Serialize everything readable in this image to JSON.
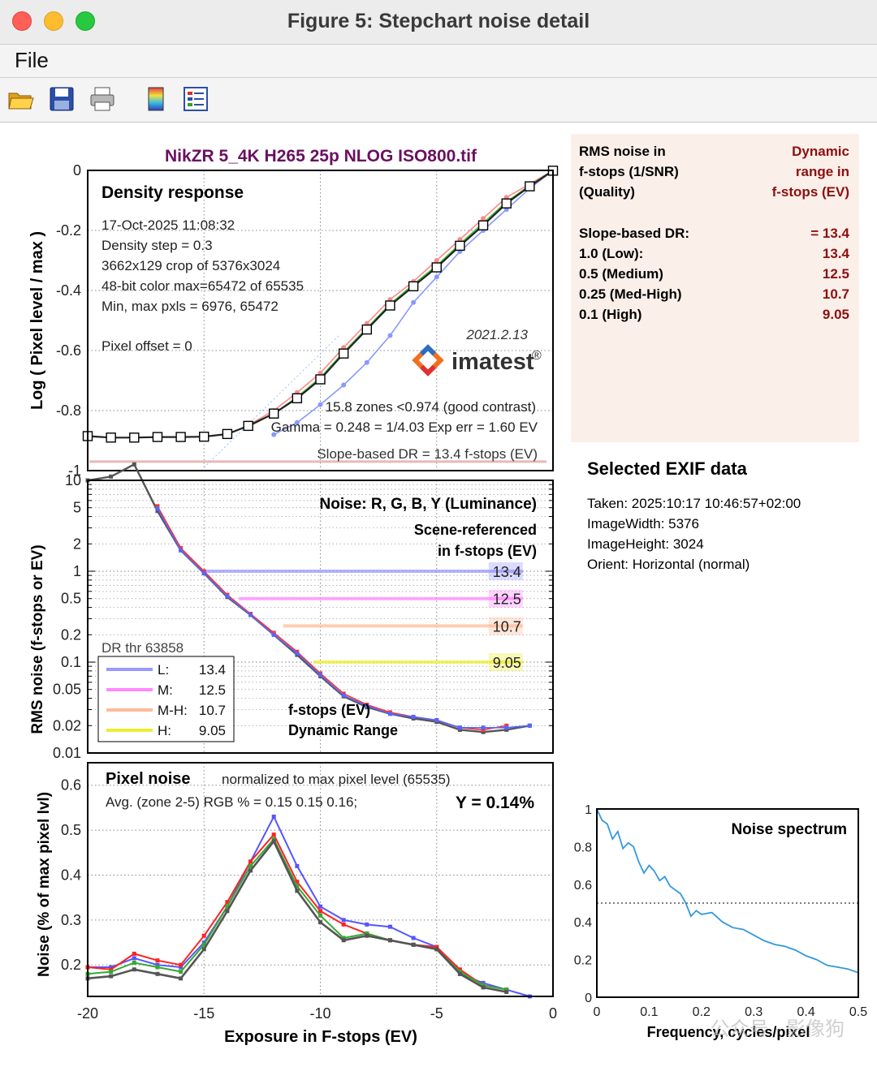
{
  "window": {
    "title": "Figure 5: Stepchart noise detail"
  },
  "menu": {
    "file": "File"
  },
  "toolbar": {
    "buttons": [
      {
        "name": "open-file-icon"
      },
      {
        "name": "save-icon"
      },
      {
        "name": "print-icon"
      },
      {
        "name": "colorbar-icon"
      },
      {
        "name": "legend-icon"
      }
    ]
  },
  "figure": {
    "title": "NikZR 5_4K H265 25p NLOG ISO800.tif",
    "x_ticks": [
      "-20",
      "-15",
      "-10",
      "-5",
      "0"
    ],
    "xlabel": "Exposure in F-stops (EV)"
  },
  "density": {
    "title": "Density response",
    "info_lines": [
      "17-Oct-2025 11:08:32",
      "Density step = 0.3",
      "3662x129 crop of 5376x3024",
      "48-bit color  max=65472 of 65535",
      "Min, max pxls = 6976, 65472"
    ],
    "pixel_offset": "Pixel offset = 0",
    "version": "2021.2.13",
    "logo": "imatest",
    "logo_reg": "®",
    "zones": "15.8 zones <0.974 (good contrast)",
    "gamma": "Gamma = 0.248 = 1/4.03  Exp err = 1.60 EV",
    "slope_dr": "Slope-based DR = 13.4 f-stops (EV)",
    "ylabel": "Log ( Pixel level / max )",
    "y_ticks": [
      "0",
      "-0.2",
      "-0.4",
      "-0.6",
      "-0.8",
      "-1"
    ]
  },
  "noise_panel": {
    "title": "Noise: R, G, B, Y (Luminance)",
    "subtitle1": "Scene-referenced",
    "subtitle2": "in f-stops (EV)",
    "ylabel": "RMS noise (f-stops or EV)",
    "y_ticks": [
      "10",
      "5",
      "2",
      "1",
      "0.5",
      "0.2",
      "0.1",
      "0.05",
      "0.02",
      "0.01"
    ],
    "dr_thr": "DR thr 63858",
    "legend": [
      {
        "label": "L:",
        "value": "13.4",
        "color": "#9999ff"
      },
      {
        "label": "M:",
        "value": "12.5",
        "color": "#ff88ff"
      },
      {
        "label": "M-H:",
        "value": "10.7",
        "color": "#ffbb99"
      },
      {
        "label": "H:",
        "value": "9.05",
        "color": "#eeee33"
      }
    ],
    "dr_labels": [
      "13.4",
      "12.5",
      "10.7",
      "9.05"
    ],
    "bottom_label1": "f-stops (EV)",
    "bottom_label2": "Dynamic Range"
  },
  "pixel_noise": {
    "title": "Pixel noise",
    "normalized": "normalized to max pixel level (65535)",
    "avg": "Avg. (zone 2-5) RGB % = 0.15  0.15  0.16;",
    "y_value": "Y = 0.14%",
    "ylabel": "Noise (% of max pixel lvl)",
    "y_ticks": [
      "0.6",
      "0.5",
      "0.4",
      "0.3",
      "0.2"
    ]
  },
  "rms_box": {
    "left_lines": [
      "RMS noise in",
      "f-stops (1/SNR)",
      "(Quality)"
    ],
    "right_lines": [
      "Dynamic",
      "range in",
      "f-stops (EV)"
    ],
    "rows": [
      {
        "label": "Slope-based DR:",
        "value": "= 13.4"
      },
      {
        "label": "1.0   (Low):",
        "value": "13.4"
      },
      {
        "label": "0.5   (Medium)",
        "value": "12.5"
      },
      {
        "label": "0.25 (Med-High)",
        "value": "10.7"
      },
      {
        "label": "0.1   (High)",
        "value": "9.05"
      }
    ]
  },
  "exif": {
    "title": "Selected EXIF data",
    "lines": [
      "Taken: 2025:10:17  10:46:57+02:00",
      "ImageWidth:  5376",
      "ImageHeight:  3024",
      "Orient: Horizontal (normal)"
    ]
  },
  "spectrum": {
    "title": "Noise spectrum",
    "xlabel": "Frequency, cycles/pixel",
    "x_ticks": [
      "0",
      "0.1",
      "0.2",
      "0.3",
      "0.4",
      "0.5"
    ],
    "y_ticks": [
      "0",
      "0.2",
      "0.4",
      "0.6",
      "0.8",
      "1"
    ]
  },
  "watermark": "公众号 · 影像狗",
  "chart_data": [
    {
      "type": "line",
      "title": "Density response",
      "ylabel": "Log ( Pixel level / max )",
      "xlim": [
        -20,
        0
      ],
      "ylim": [
        -1,
        0
      ],
      "series": [
        {
          "color": "#222222",
          "x": [
            -20,
            -19,
            -18,
            -17,
            -16,
            -15,
            -14,
            -13.1,
            -12,
            -11,
            -10,
            -9,
            -8,
            -7,
            -6,
            -5,
            -4,
            -3,
            -2,
            -1,
            0
          ],
          "y": [
            -0.885,
            -0.89,
            -0.89,
            -0.888,
            -0.888,
            -0.887,
            -0.878,
            -0.851,
            -0.81,
            -0.759,
            -0.696,
            -0.61,
            -0.53,
            -0.45,
            -0.386,
            -0.323,
            -0.251,
            -0.183,
            -0.11,
            -0.053,
            -0.001
          ]
        },
        {
          "color": "#ff8888",
          "x": [
            -13,
            -12,
            -11,
            -10,
            -9,
            -8,
            -7,
            -6,
            -5,
            -4,
            -3,
            -2,
            -1,
            0
          ],
          "y": [
            -0.845,
            -0.8,
            -0.74,
            -0.675,
            -0.59,
            -0.51,
            -0.43,
            -0.37,
            -0.3,
            -0.23,
            -0.16,
            -0.09,
            -0.045,
            0
          ]
        },
        {
          "color": "#44bb44",
          "x": [
            -13,
            -12,
            -11,
            -10,
            -9,
            -8,
            -7,
            -6,
            -5,
            -4,
            -3,
            -2,
            -1,
            0
          ],
          "y": [
            -0.85,
            -0.81,
            -0.755,
            -0.69,
            -0.605,
            -0.525,
            -0.445,
            -0.38,
            -0.317,
            -0.245,
            -0.175,
            -0.105,
            -0.05,
            0
          ]
        },
        {
          "color": "#8899ff",
          "x": [
            -12,
            -11,
            -10,
            -9,
            -8,
            -7,
            -6,
            -5,
            -4,
            -3,
            -2,
            -1,
            0
          ],
          "y": [
            -0.88,
            -0.84,
            -0.78,
            -0.715,
            -0.64,
            -0.55,
            -0.44,
            -0.355,
            -0.27,
            -0.2,
            -0.13,
            -0.06,
            0
          ]
        }
      ]
    },
    {
      "type": "line",
      "title": "Noise: R, G, B, Y (Luminance)",
      "ylabel": "RMS noise (f-stops or EV)",
      "y_scale": "log",
      "xlim": [
        -20,
        0
      ],
      "ylim": [
        0.01,
        10
      ],
      "dr_lines": [
        {
          "x": [
            -15,
            -1.3
          ],
          "y": 1.0,
          "value": "13.4",
          "color": "#9999ff"
        },
        {
          "x": [
            -13.5,
            -1.3
          ],
          "y": 0.5,
          "value": "12.5",
          "color": "#ff88ff"
        },
        {
          "x": [
            -11.6,
            -1.3
          ],
          "y": 0.25,
          "value": "10.7",
          "color": "#ffbb99"
        },
        {
          "x": [
            -10.3,
            -1.3
          ],
          "y": 0.1,
          "value": "9.05",
          "color": "#eeee33"
        }
      ],
      "series": [
        {
          "color": "#555555",
          "x": [
            -20,
            -19,
            -18,
            -17,
            -16,
            -15,
            -14,
            -13,
            -12,
            -11,
            -10,
            -9,
            -8,
            -7,
            -6,
            -5,
            -4,
            -3,
            -2,
            -1
          ],
          "y": [
            10,
            11,
            15,
            4.6,
            1.7,
            0.95,
            0.52,
            0.33,
            0.2,
            0.12,
            0.07,
            0.042,
            0.032,
            0.027,
            0.024,
            0.022,
            0.018,
            0.017,
            0.018,
            0.02
          ]
        },
        {
          "color": "#ff3333",
          "x": [
            -17,
            -16,
            -15,
            -14,
            -13,
            -12,
            -11,
            -10,
            -9,
            -8,
            -7,
            -6,
            -5,
            -4,
            -3,
            -2
          ],
          "y": [
            5.2,
            1.8,
            1.0,
            0.55,
            0.34,
            0.21,
            0.13,
            0.075,
            0.045,
            0.034,
            0.028,
            0.025,
            0.023,
            0.019,
            0.018,
            0.02
          ]
        },
        {
          "color": "#5566ff",
          "x": [
            -17,
            -16,
            -15,
            -14,
            -13,
            -12,
            -11,
            -10,
            -9,
            -8,
            -7,
            -6,
            -5,
            -4,
            -3,
            -2,
            -1
          ],
          "y": [
            4.9,
            1.7,
            0.95,
            0.53,
            0.33,
            0.2,
            0.125,
            0.072,
            0.043,
            0.033,
            0.027,
            0.025,
            0.023,
            0.019,
            0.019,
            0.019,
            0.02
          ]
        }
      ]
    },
    {
      "type": "line",
      "title": "Pixel noise",
      "ylabel": "Noise (% of max pixel lvl)",
      "xlim": [
        -20,
        0
      ],
      "ylim": [
        0.13,
        0.65
      ],
      "series": [
        {
          "color": "#5555ff",
          "x": [
            -20,
            -19,
            -18,
            -17,
            -16,
            -15,
            -14,
            -13,
            -12,
            -11,
            -10,
            -9,
            -8,
            -7,
            -6,
            -5,
            -4,
            -3,
            -2,
            -1
          ],
          "y": [
            0.195,
            0.195,
            0.215,
            0.2,
            0.195,
            0.25,
            0.33,
            0.43,
            0.53,
            0.42,
            0.33,
            0.3,
            0.29,
            0.285,
            0.26,
            0.24,
            0.18,
            0.16,
            0.145,
            0.13
          ]
        },
        {
          "color": "#ff2222",
          "x": [
            -20,
            -19,
            -18,
            -17,
            -16,
            -15,
            -14,
            -13,
            -12,
            -11,
            -10,
            -9,
            -8,
            -7,
            -6,
            -5,
            -4,
            -3,
            -2
          ],
          "y": [
            0.195,
            0.19,
            0.225,
            0.21,
            0.2,
            0.265,
            0.34,
            0.43,
            0.49,
            0.385,
            0.32,
            0.29,
            0.27,
            0.255,
            0.245,
            0.24,
            0.19,
            0.155,
            0.145
          ]
        },
        {
          "color": "#33aa33",
          "x": [
            -20,
            -19,
            -18,
            -17,
            -16,
            -15,
            -14,
            -13,
            -12,
            -11,
            -10,
            -9,
            -8,
            -7,
            -6,
            -5,
            -4,
            -3,
            -2
          ],
          "y": [
            0.18,
            0.185,
            0.205,
            0.195,
            0.185,
            0.245,
            0.33,
            0.42,
            0.48,
            0.375,
            0.31,
            0.26,
            0.27,
            0.255,
            0.245,
            0.235,
            0.185,
            0.155,
            0.145
          ]
        },
        {
          "color": "#555555",
          "x": [
            -20,
            -19,
            -18,
            -17,
            -16,
            -15,
            -14,
            -13,
            -12,
            -11,
            -10,
            -9,
            -8,
            -7,
            -6,
            -5,
            -4,
            -3,
            -2
          ],
          "y": [
            0.17,
            0.175,
            0.19,
            0.18,
            0.17,
            0.235,
            0.32,
            0.41,
            0.475,
            0.365,
            0.295,
            0.255,
            0.265,
            0.255,
            0.245,
            0.235,
            0.18,
            0.15,
            0.14
          ]
        }
      ]
    },
    {
      "type": "line",
      "title": "Noise spectrum",
      "xlabel": "Frequency, cycles/pixel",
      "xlim": [
        0,
        0.5
      ],
      "ylim": [
        0,
        1
      ],
      "reference_y": 0.5,
      "series": [
        {
          "color": "#3399dd",
          "x": [
            0,
            0.01,
            0.02,
            0.03,
            0.04,
            0.05,
            0.06,
            0.07,
            0.08,
            0.09,
            0.1,
            0.11,
            0.12,
            0.13,
            0.14,
            0.15,
            0.16,
            0.17,
            0.18,
            0.19,
            0.2,
            0.22,
            0.24,
            0.26,
            0.28,
            0.3,
            0.32,
            0.34,
            0.36,
            0.38,
            0.4,
            0.42,
            0.44,
            0.46,
            0.48,
            0.5
          ],
          "y": [
            1.0,
            0.94,
            0.92,
            0.84,
            0.88,
            0.79,
            0.82,
            0.8,
            0.72,
            0.66,
            0.7,
            0.67,
            0.62,
            0.64,
            0.59,
            0.57,
            0.55,
            0.5,
            0.43,
            0.46,
            0.44,
            0.45,
            0.4,
            0.37,
            0.36,
            0.33,
            0.3,
            0.28,
            0.27,
            0.25,
            0.22,
            0.2,
            0.17,
            0.16,
            0.15,
            0.13
          ]
        }
      ]
    }
  ]
}
